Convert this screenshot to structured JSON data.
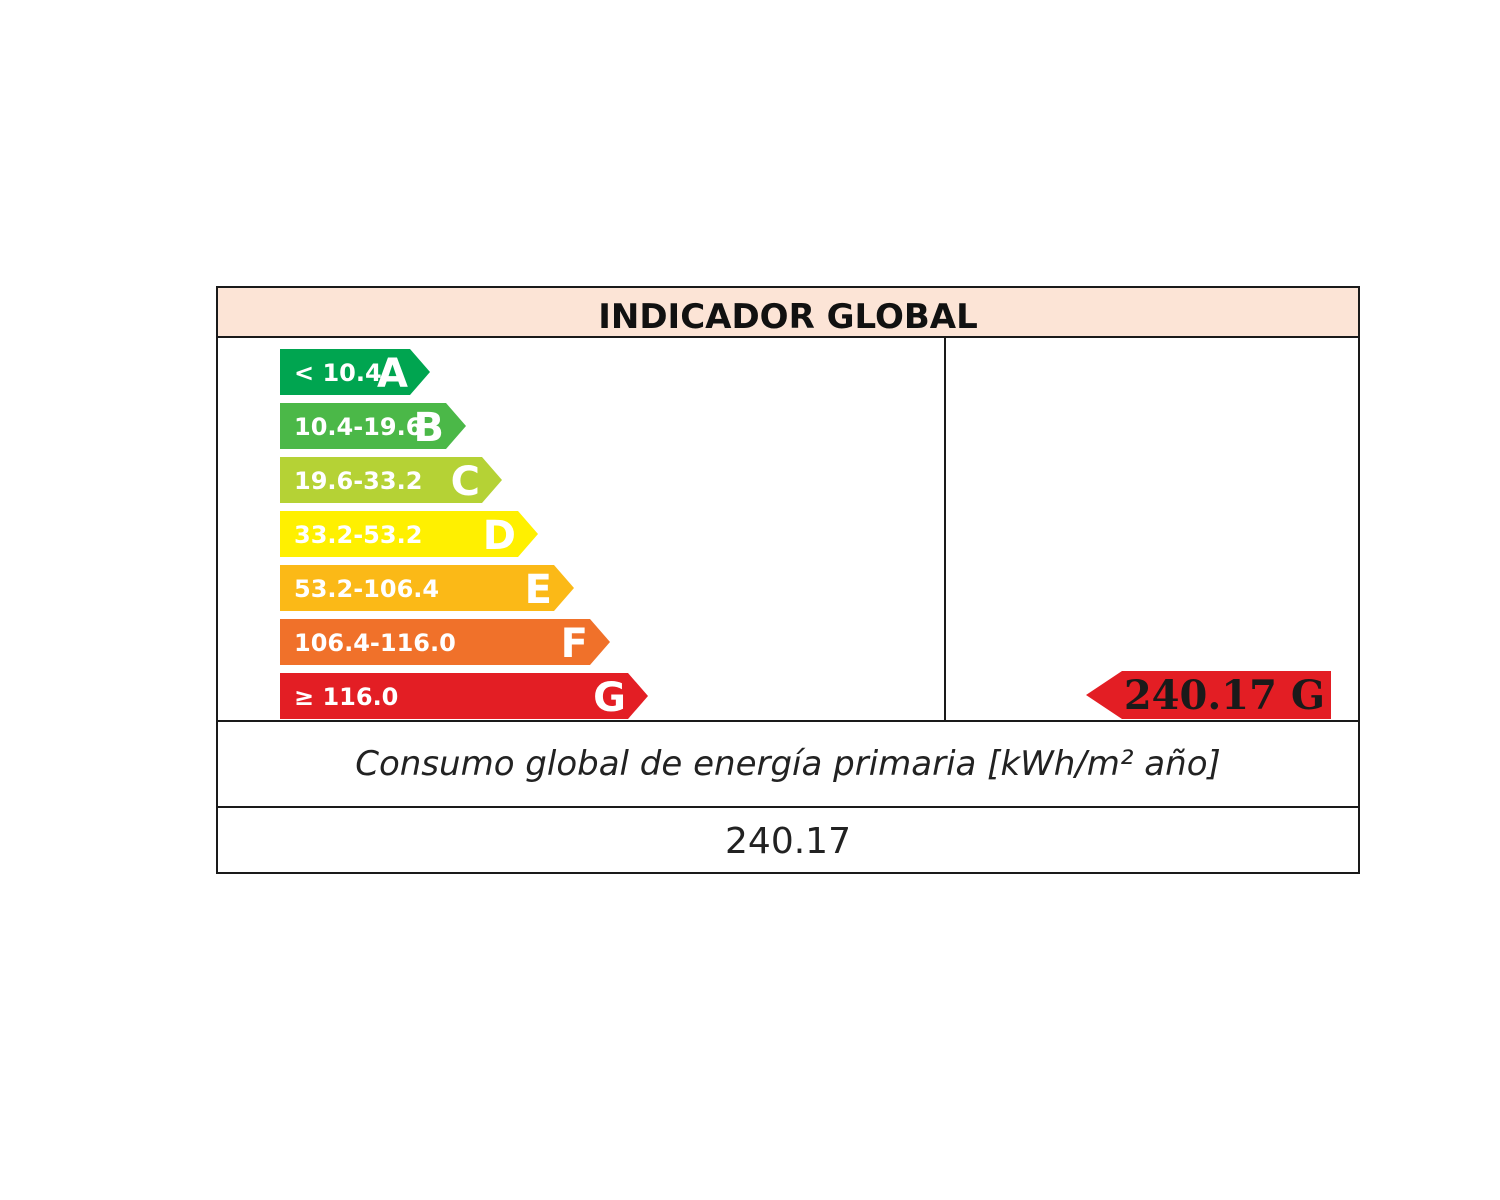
{
  "title": "INDICADOR GLOBAL",
  "caption": "Consumo global de energía primaria [kWh/m² año]",
  "value": "240.17",
  "rating_indicator": {
    "text": "240.17 G",
    "value": 240.17,
    "class": "G",
    "color": "#e31e24"
  },
  "classes": [
    {
      "letter": "A",
      "range": "< 10.4",
      "color": "#00a550"
    },
    {
      "letter": "B",
      "range": "10.4-19.6",
      "color": "#4bb848"
    },
    {
      "letter": "C",
      "range": "19.6-33.2",
      "color": "#b5d235"
    },
    {
      "letter": "D",
      "range": "33.2-53.2",
      "color": "#fff000"
    },
    {
      "letter": "E",
      "range": "53.2-106.4",
      "color": "#fbb917"
    },
    {
      "letter": "F",
      "range": "106.4-116.0",
      "color": "#f0712a"
    },
    {
      "letter": "G",
      "range": "≥ 116.0",
      "color": "#e31e24"
    }
  ]
}
